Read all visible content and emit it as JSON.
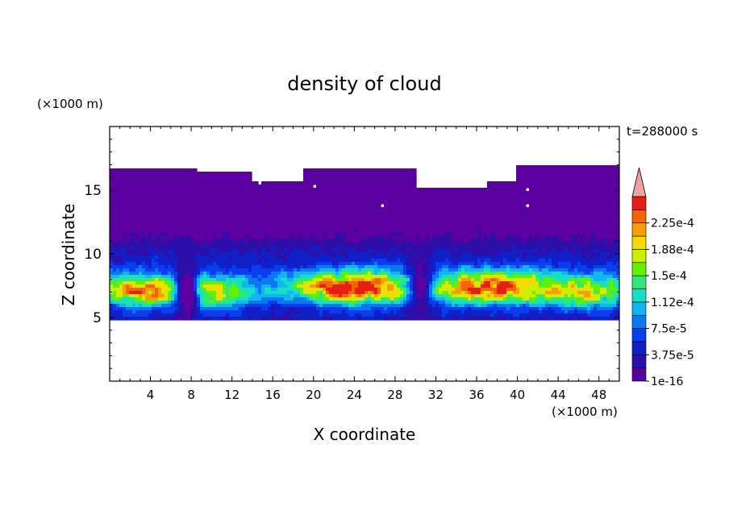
{
  "chart_data": {
    "type": "heatmap",
    "title": "density of cloud",
    "xlabel": "X coordinate",
    "ylabel": "Z coordinate",
    "x_unit": "(×1000 m)",
    "y_unit": "(×1000 m)",
    "time_label": "t=288000 s",
    "xlim": [
      0,
      50
    ],
    "ylim": [
      0,
      20
    ],
    "x_ticks": [
      4,
      8,
      12,
      16,
      20,
      24,
      28,
      32,
      36,
      40,
      44,
      48
    ],
    "y_ticks": [
      5,
      10,
      15
    ],
    "colorbar": {
      "levels": [
        1e-16,
        1.875e-05,
        3.75e-05,
        5.625e-05,
        7.5e-05,
        9.375e-05,
        0.0001125,
        0.00013125,
        0.00015,
        0.00016875,
        0.0001875,
        0.00020625,
        0.000225,
        0.00024375
      ],
      "tick_labels": [
        "1e-16",
        "3.75e-5",
        "7.5e-5",
        "1.12e-4",
        "1.5e-4",
        "1.88e-4",
        "2.25e-4"
      ],
      "colors": [
        "#5a00a0",
        "#2c0fa8",
        "#1020c8",
        "#0a3cf0",
        "#0a78f0",
        "#14b4f0",
        "#14e0c8",
        "#30e878",
        "#64f000",
        "#c8f000",
        "#f5dc00",
        "#f5a000",
        "#f56400",
        "#e61e14"
      ],
      "extend_color": "#f0a0a0"
    },
    "cloud_layers": [
      {
        "level": 1e-16,
        "z_bottom": 4.7,
        "z_top": 16.5
      },
      {
        "level": 3.75e-05,
        "z_bottom": 4.9,
        "z_top": 11.2
      },
      {
        "level": 7.5e-05,
        "z_bottom": 5.3,
        "z_top": 9.5
      },
      {
        "level": 0.000112,
        "z_bottom": 5.9,
        "z_top": 8.3
      },
      {
        "level": 0.00015,
        "z_bottom": 6.7,
        "z_top": 8.0
      }
    ]
  }
}
